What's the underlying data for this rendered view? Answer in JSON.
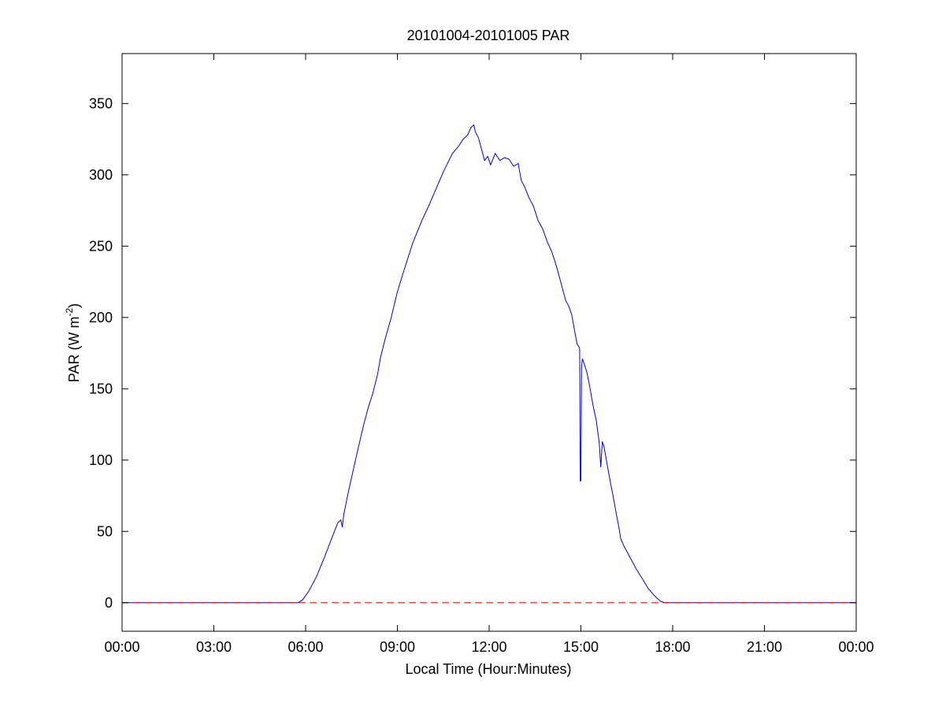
{
  "chart_data": {
    "type": "line",
    "title": "20101004-20101005 PAR",
    "xlabel": "Local Time (Hour:Minutes)",
    "ylabel": {
      "prefix": "PAR (W m",
      "superscript": "-2",
      "suffix": ")"
    },
    "xlim": [
      0,
      24
    ],
    "ylim": [
      -20,
      385
    ],
    "x_unit": "hours (local time)",
    "x_ticks": [
      0,
      3,
      6,
      9,
      12,
      15,
      18,
      21,
      24
    ],
    "x_tick_labels": [
      "00:00",
      "03:00",
      "06:00",
      "09:00",
      "12:00",
      "15:00",
      "18:00",
      "21:00",
      "00:00"
    ],
    "y_ticks": [
      0,
      50,
      100,
      150,
      200,
      250,
      300,
      350
    ],
    "y_tick_labels": [
      "0",
      "50",
      "100",
      "150",
      "200",
      "250",
      "300",
      "350"
    ],
    "grid": false,
    "series": [
      {
        "color": "#0000cc",
        "line_style": "solid",
        "x": [
          0,
          5.75,
          5.9,
          6.1,
          6.35,
          6.6,
          6.85,
          7.05,
          7.15,
          7.2,
          7.25,
          7.4,
          7.65,
          7.9,
          8.05,
          8.2,
          8.35,
          8.45,
          8.6,
          8.8,
          9.0,
          9.2,
          9.5,
          9.8,
          10.0,
          10.2,
          10.5,
          10.8,
          11.0,
          11.15,
          11.3,
          11.4,
          11.5,
          11.55,
          11.65,
          11.75,
          11.85,
          11.95,
          12.05,
          12.2,
          12.35,
          12.5,
          12.65,
          12.8,
          12.95,
          13.05,
          13.15,
          13.3,
          13.45,
          13.6,
          13.75,
          13.9,
          14.05,
          14.2,
          14.35,
          14.5,
          14.6,
          14.7,
          14.8,
          14.88,
          14.92,
          14.96,
          14.98,
          15.0,
          15.02,
          15.05,
          15.1,
          15.2,
          15.3,
          15.4,
          15.5,
          15.6,
          15.65,
          15.7,
          15.75,
          15.85,
          15.95,
          16.05,
          16.15,
          16.25,
          16.3,
          16.4,
          16.6,
          16.8,
          17.0,
          17.2,
          17.4,
          17.6,
          17.75,
          17.85,
          18.0,
          24
        ],
        "values": [
          0,
          0,
          2,
          8,
          18,
          31,
          45,
          56,
          58,
          53,
          62,
          78,
          102,
          125,
          137,
          147,
          160,
          172,
          185,
          200,
          218,
          232,
          252,
          268,
          277,
          287,
          302,
          315,
          320,
          325,
          328,
          333,
          335,
          330,
          326,
          318,
          310,
          313,
          307,
          315,
          310,
          312,
          311,
          306,
          308,
          296,
          292,
          284,
          278,
          268,
          262,
          253,
          246,
          236,
          224,
          212,
          208,
          202,
          190,
          181,
          180,
          178,
          85,
          86,
          165,
          171,
          168,
          161,
          150,
          138,
          128,
          112,
          95,
          113,
          110,
          98,
          86,
          75,
          63,
          52,
          45,
          40,
          32,
          24,
          17,
          10,
          5,
          1,
          0,
          0,
          0,
          0
        ]
      },
      {
        "color": "#ff0000",
        "line_style": "dashed",
        "x": [
          0,
          24
        ],
        "values": [
          0,
          0
        ]
      }
    ]
  }
}
